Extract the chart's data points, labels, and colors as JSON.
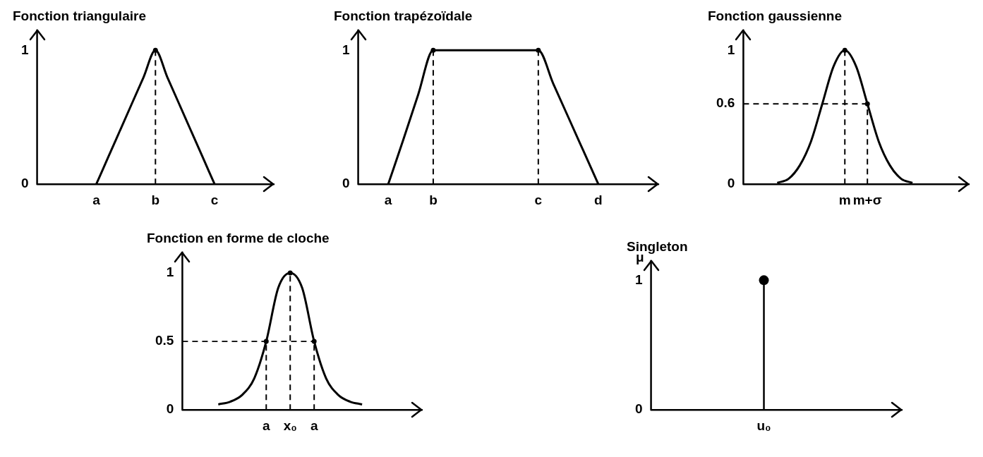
{
  "chart_data": [
    {
      "type": "line",
      "title": "Fonction triangulaire",
      "categories": [
        null,
        null,
        null,
        null,
        null,
        "a",
        null,
        null,
        null,
        null,
        "b",
        null,
        null,
        null,
        null,
        "c",
        null,
        null,
        null,
        null,
        null
      ],
      "ylim": [
        0,
        1.15
      ],
      "yticks": [
        0,
        1
      ],
      "series": [
        {
          "color": "#000000",
          "line_style": "solid",
          "values": [
            null,
            null,
            null,
            null,
            null,
            0,
            0.2,
            0.4,
            0.6,
            0.8,
            1,
            0.8,
            0.6,
            0.4,
            0.2,
            0,
            null,
            null,
            null,
            null,
            null
          ]
        },
        {
          "type": "lollipop",
          "marker": "circle",
          "color": "#000000",
          "line_style": "dashed",
          "values": [
            null,
            null,
            null,
            null,
            null,
            null,
            null,
            null,
            null,
            null,
            1,
            null,
            null,
            null,
            null,
            null,
            null,
            null,
            null,
            null,
            null
          ]
        }
      ]
    },
    {
      "type": "line",
      "title": "Fonction trapézoïdale",
      "categories": [
        null,
        null,
        "a",
        null,
        null,
        "b",
        null,
        null,
        null,
        null,
        null,
        null,
        "c",
        null,
        null,
        null,
        "d",
        null,
        null,
        null,
        null
      ],
      "ylim": [
        0,
        1.15
      ],
      "yticks": [
        0,
        1
      ],
      "series": [
        {
          "color": "#000000",
          "line_style": "solid",
          "values": [
            null,
            null,
            0,
            0.33,
            0.67,
            1,
            1,
            1,
            1,
            1,
            1,
            1,
            1,
            0.75,
            0.5,
            0.25,
            0,
            null,
            null,
            null,
            null
          ]
        },
        {
          "type": "lollipop",
          "marker": "circle",
          "color": "#000000",
          "line_style": "dashed",
          "values": [
            null,
            null,
            null,
            null,
            null,
            1,
            null,
            null,
            null,
            null,
            null,
            null,
            1,
            null,
            null,
            null,
            null,
            null,
            null,
            null,
            null
          ]
        }
      ]
    },
    {
      "type": "line",
      "title": "Fonction gaussienne",
      "categories": [
        null,
        null,
        null,
        null,
        null,
        null,
        null,
        null,
        null,
        "m",
        null,
        "m+σ",
        null,
        null,
        null,
        null,
        null,
        null,
        null,
        null,
        null
      ],
      "ylim": [
        0,
        1.15
      ],
      "yticks": [
        0,
        0.6,
        1
      ],
      "series": [
        {
          "color": "#000000",
          "line_style": "solid",
          "values": [
            null,
            null,
            null,
            0.01,
            0.04,
            0.14,
            0.32,
            0.6,
            0.88,
            1,
            0.88,
            0.6,
            0.32,
            0.14,
            0.04,
            0.01,
            null,
            null,
            null,
            null,
            null
          ]
        },
        {
          "color": "#000000",
          "line_style": "dashed",
          "values": [
            0.6,
            0.6,
            0.6,
            0.6,
            0.6,
            0.6,
            0.6,
            0.6,
            0.6,
            0.6,
            0.6,
            0.6,
            null,
            null,
            null,
            null,
            null,
            null,
            null,
            null,
            null
          ]
        },
        {
          "type": "lollipop",
          "marker": "circle",
          "color": "#000000",
          "line_style": "dashed",
          "values": [
            null,
            null,
            null,
            null,
            null,
            null,
            null,
            null,
            null,
            1,
            null,
            0.6,
            null,
            null,
            null,
            null,
            null,
            null,
            null,
            null,
            null
          ]
        }
      ]
    },
    {
      "type": "line",
      "title": "Fonction en forme de cloche",
      "categories": [
        null,
        null,
        null,
        null,
        null,
        null,
        null,
        "a",
        null,
        "x₀",
        null,
        "a",
        null,
        null,
        null,
        null,
        null,
        null,
        null,
        null,
        null
      ],
      "ylim": [
        0,
        1.15
      ],
      "yticks": [
        0,
        0.5,
        1
      ],
      "series": [
        {
          "color": "#000000",
          "line_style": "solid",
          "values": [
            null,
            null,
            null,
            0.04,
            0.06,
            0.11,
            0.23,
            0.5,
            0.89,
            1,
            0.89,
            0.5,
            0.23,
            0.11,
            0.06,
            0.04,
            null,
            null,
            null,
            null,
            null
          ]
        },
        {
          "color": "#000000",
          "line_style": "dashed",
          "values": [
            0.5,
            0.5,
            0.5,
            0.5,
            0.5,
            0.5,
            0.5,
            0.5,
            0.5,
            0.5,
            0.5,
            0.5,
            null,
            null,
            null,
            null,
            null,
            null,
            null,
            null,
            null
          ]
        },
        {
          "type": "lollipop",
          "marker": "circle",
          "color": "#000000",
          "line_style": "dashed",
          "values": [
            null,
            null,
            null,
            null,
            null,
            null,
            null,
            0.5,
            null,
            1,
            null,
            0.5,
            null,
            null,
            null,
            null,
            null,
            null,
            null,
            null,
            null
          ]
        }
      ]
    },
    {
      "type": "lollipop",
      "title": "Singleton",
      "ylabel": "μ",
      "categories": [
        null,
        null,
        null,
        null,
        null,
        null,
        null,
        null,
        null,
        "u₀",
        null,
        null,
        null,
        null,
        null,
        null,
        null,
        null,
        null,
        null,
        null
      ],
      "ylim": [
        0,
        1.15
      ],
      "yticks": [
        0,
        1
      ],
      "marker": "circle",
      "series": [
        {
          "color": "#000000",
          "line_style": "solid",
          "values": [
            null,
            null,
            null,
            null,
            null,
            null,
            null,
            null,
            null,
            1,
            null,
            null,
            null,
            null,
            null,
            null,
            null,
            null,
            null,
            null,
            null
          ]
        }
      ]
    }
  ]
}
